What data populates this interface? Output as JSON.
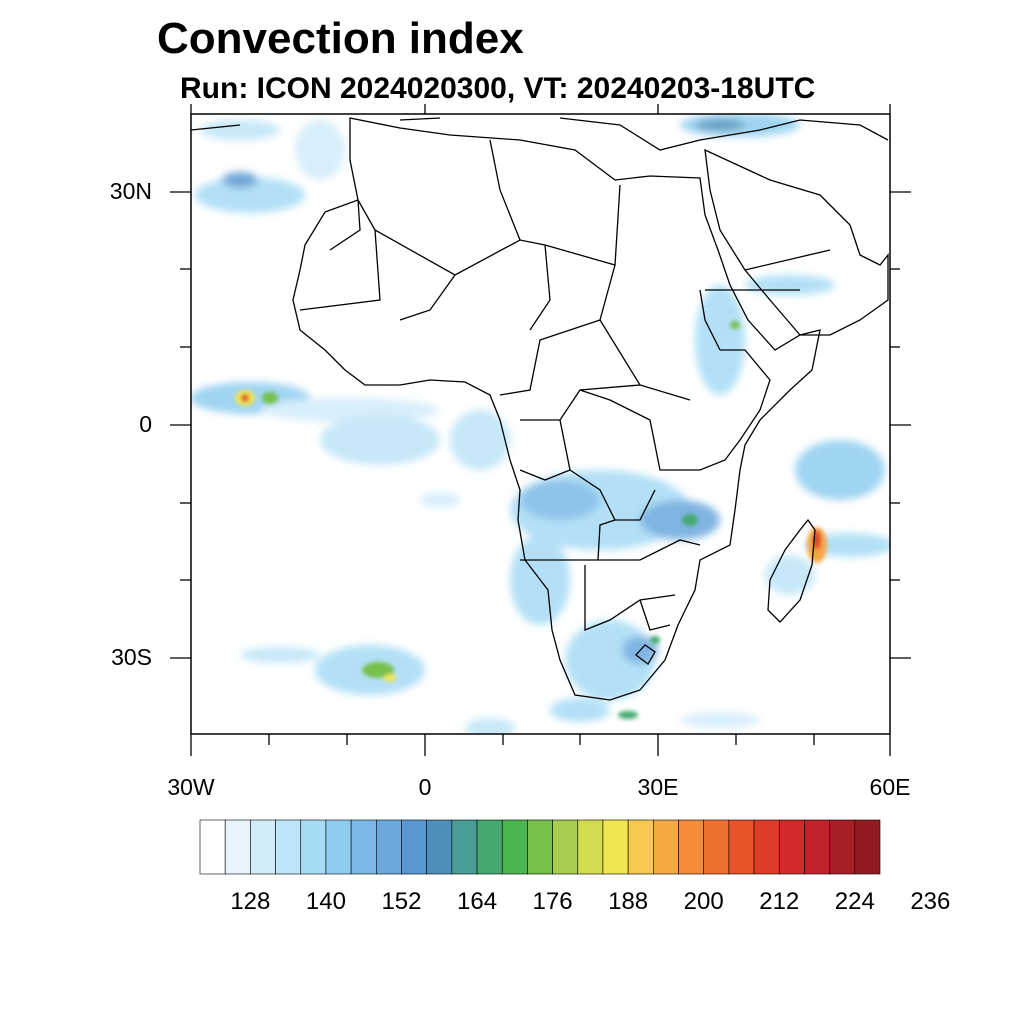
{
  "title": "Convection index",
  "subtitle": "Run: ICON 2024020300,  VT: 20240203-18UTC",
  "map": {
    "lat_labels": [
      "30N",
      "0",
      "30S"
    ],
    "lon_labels": [
      "30W",
      "0",
      "30E",
      "60E"
    ],
    "lon_range": [
      -30,
      60
    ],
    "lat_range": [
      -40,
      40
    ]
  },
  "colorbar": {
    "labels": [
      "128",
      "140",
      "152",
      "164",
      "176",
      "188",
      "200",
      "212",
      "224",
      "236"
    ],
    "colors": [
      "#ffffff",
      "#e8f5fc",
      "#d2ecfa",
      "#bde4f8",
      "#a6dbf6",
      "#8fcdf0",
      "#7ab9e6",
      "#6aa8dd",
      "#5a98d2",
      "#4d8fb8",
      "#489d96",
      "#44a86f",
      "#4db54f",
      "#76c04b",
      "#a8cd4d",
      "#d3db4f",
      "#f1e552",
      "#f8c84f",
      "#f6a844",
      "#f48c3a",
      "#ef6f30",
      "#e85429",
      "#de3b28",
      "#d22a2a",
      "#bf2228",
      "#a91e24",
      "#931a1f"
    ]
  }
}
